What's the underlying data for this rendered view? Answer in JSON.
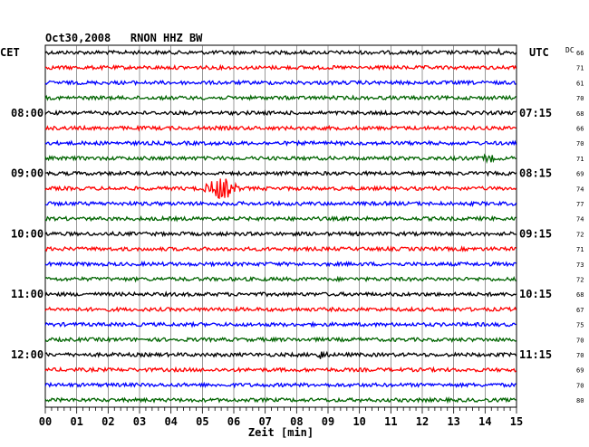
{
  "header": {
    "title": "Oct30,2008   RNON HHZ BW",
    "left_zone": "CET",
    "right_zone": "UTC",
    "dc_label": "DC"
  },
  "chart_data": {
    "type": "line",
    "title": "Oct30,2008   RNON HHZ BW",
    "xlabel": "Zeit [min]",
    "x_range": [
      0,
      15
    ],
    "x_ticks": [
      "00",
      "01",
      "02",
      "03",
      "04",
      "05",
      "06",
      "07",
      "08",
      "09",
      "10",
      "11",
      "12",
      "13",
      "14",
      "15"
    ],
    "grid": true,
    "trace_colors": [
      "#000000",
      "#ff0000",
      "#0000ff",
      "#006400"
    ],
    "left_hour_labels": [
      {
        "row": 4,
        "label": "08:00"
      },
      {
        "row": 8,
        "label": "09:00"
      },
      {
        "row": 12,
        "label": "10:00"
      },
      {
        "row": 16,
        "label": "11:00"
      },
      {
        "row": 20,
        "label": "12:00"
      }
    ],
    "right_hour_labels": [
      {
        "row": 4,
        "label": "07:15"
      },
      {
        "row": 8,
        "label": "08:15"
      },
      {
        "row": 12,
        "label": "09:15"
      },
      {
        "row": 16,
        "label": "10:15"
      },
      {
        "row": 20,
        "label": "11:15"
      }
    ],
    "dc_values": [
      "66",
      "71",
      "61",
      "70",
      "68",
      "66",
      "70",
      "71",
      "69",
      "74",
      "77",
      "74",
      "72",
      "71",
      "73",
      "72",
      "68",
      "67",
      "75",
      "70",
      "70",
      "69",
      "70",
      "80"
    ],
    "events": [
      {
        "row": 9,
        "minute": 5.6,
        "amplitude": 12
      },
      {
        "row": 7,
        "minute": 14.1,
        "amplitude": 4
      },
      {
        "row": 20,
        "minute": 8.8,
        "amplitude": 4
      },
      {
        "row": 0,
        "minute": 14.4,
        "amplitude": 2
      }
    ],
    "baseline_noise": 2
  }
}
